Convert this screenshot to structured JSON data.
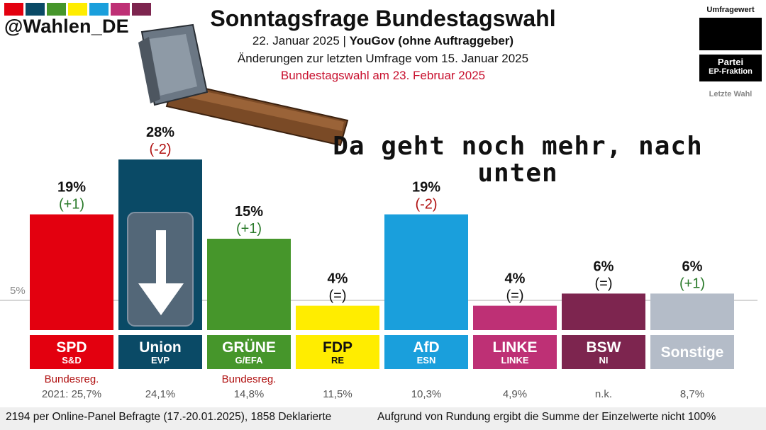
{
  "header": {
    "handle": "@Wahlen_DE",
    "title": "Sonntagsfrage Bundestagswahl",
    "subtitle_line1_prefix": "22. Januar 2025 | ",
    "subtitle_line1_bold": "YouGov (ohne Auftraggeber)",
    "subtitle_line2": "Änderungen zur letzten Umfrage vom 15. Januar 2025",
    "subtitle_line3": "Bundestagswahl am 23. Februar 2025",
    "strip_colors": [
      "#e3000f",
      "#0a4a66",
      "#46962b",
      "#ffed00",
      "#1a9fdc",
      "#be3075",
      "#7d254f"
    ]
  },
  "legend": {
    "header": "Umfragewert",
    "party": "Partei",
    "fraction": "EP-Fraktion",
    "last": "Letzte Wahl"
  },
  "overlay": {
    "text": "Da geht noch mehr, nach unten"
  },
  "chart_data": {
    "type": "bar",
    "ylabel": "",
    "reference_line": {
      "value": 5,
      "label": "5%"
    },
    "ylim": [
      0,
      30
    ],
    "categories": [
      "SPD",
      "Union",
      "GRÜNE",
      "FDP",
      "AfD",
      "LINKE",
      "BSW",
      "Sonstige"
    ],
    "values": [
      19,
      28,
      15,
      4,
      19,
      4,
      6,
      6
    ],
    "value_labels": [
      "19%",
      "28%",
      "15%",
      "4%",
      "19%",
      "4%",
      "6%",
      "6%"
    ],
    "changes": [
      "(+1)",
      "(-2)",
      "(+1)",
      "(=)",
      "(-2)",
      "(=)",
      "(=)",
      "(+1)"
    ],
    "change_colors": [
      "#2a7a2a",
      "#b01010",
      "#2a7a2a",
      "#111111",
      "#b01010",
      "#111111",
      "#111111",
      "#2a7a2a"
    ],
    "ep_fractions": [
      "S&D",
      "EVP",
      "G/EFA",
      "RE",
      "ESN",
      "LINKE",
      "NI",
      ""
    ],
    "colors": [
      "#e3000f",
      "#0a4a66",
      "#46962b",
      "#ffed00",
      "#1a9fdc",
      "#be3075",
      "#7d254f",
      "#b4bcc8"
    ],
    "label_text_colors": [
      "#ffffff",
      "#ffffff",
      "#ffffff",
      "#111111",
      "#ffffff",
      "#ffffff",
      "#ffffff",
      "#ffffff"
    ],
    "government_note": [
      "Bundesreg.",
      "",
      "Bundesreg.",
      "",
      "",
      "",
      "",
      ""
    ],
    "last_election": [
      "2021: 25,7%",
      "24,1%",
      "14,8%",
      "11,5%",
      "10,3%",
      "4,9%",
      "n.k.",
      "8,7%"
    ]
  },
  "footer": {
    "left": "2194 per Online-Panel Befragte (17.-20.01.2025), 1858 Deklarierte",
    "right": "Aufgrund von Rundung ergibt die Summe der Einzelwerte nicht 100%"
  }
}
